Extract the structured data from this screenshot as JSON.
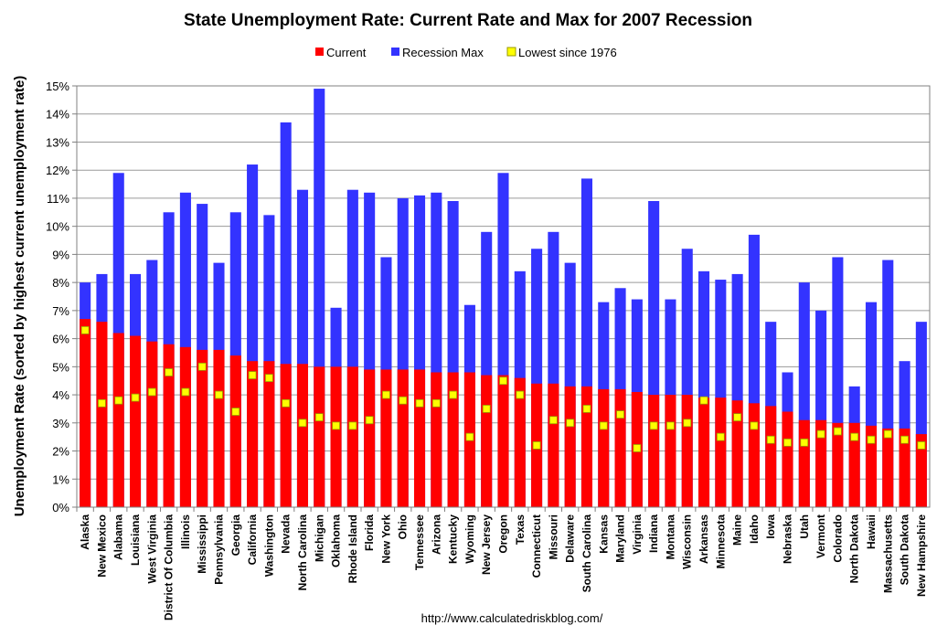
{
  "chart_data": {
    "type": "bar",
    "title": "State Unemployment Rate: Current Rate and Max for 2007 Recession",
    "ylabel": "Unemployment Rate (sorted by highest current unemployment rate)",
    "xlabel": "",
    "ylim": [
      0,
      15
    ],
    "ytick_values": [
      0,
      1,
      2,
      3,
      4,
      5,
      6,
      7,
      8,
      9,
      10,
      11,
      12,
      13,
      14,
      15
    ],
    "ytick_labels": [
      "0%",
      "1%",
      "2%",
      "3%",
      "4%",
      "5%",
      "6%",
      "7%",
      "8%",
      "9%",
      "10%",
      "11%",
      "12%",
      "13%",
      "14%",
      "15%"
    ],
    "grid": true,
    "legend_position": "top-center",
    "colors": {
      "current": "#ff0000",
      "recession_max": "#3333ff",
      "lowest": "#ffff00",
      "lowest_border": "#999900"
    },
    "categories": [
      "Alaska",
      "New Mexico",
      "Alabama",
      "Louisiana",
      "West Virginia",
      "District Of Columbia",
      "Illinois",
      "Mississippi",
      "Pennsylvania",
      "Georgia",
      "California",
      "Washington",
      "Nevada",
      "North Carolina",
      "Michigan",
      "Oklahoma",
      "Rhode Island",
      "Florida",
      "New York",
      "Ohio",
      "Tennessee",
      "Arizona",
      "Kentucky",
      "Wyoming",
      "New Jersey",
      "Oregon",
      "Texas",
      "Connecticut",
      "Missouri",
      "Delaware",
      "South Carolina",
      "Kansas",
      "Maryland",
      "Virginia",
      "Indiana",
      "Montana",
      "Wisconsin",
      "Arkansas",
      "Minnesota",
      "Maine",
      "Idaho",
      "Iowa",
      "Nebraska",
      "Utah",
      "Vermont",
      "Colorado",
      "North Dakota",
      "Hawaii",
      "Massachusetts",
      "South Dakota",
      "New Hampshire"
    ],
    "series": [
      {
        "name": "Current",
        "type": "bar",
        "values": [
          6.7,
          6.6,
          6.2,
          6.1,
          5.9,
          5.8,
          5.7,
          5.6,
          5.6,
          5.4,
          5.2,
          5.2,
          5.1,
          5.1,
          5.0,
          5.0,
          5.0,
          4.9,
          4.9,
          4.9,
          4.9,
          4.8,
          4.8,
          4.8,
          4.7,
          4.7,
          4.6,
          4.4,
          4.4,
          4.3,
          4.3,
          4.2,
          4.2,
          4.1,
          4.0,
          4.0,
          4.0,
          3.9,
          3.9,
          3.8,
          3.7,
          3.6,
          3.4,
          3.1,
          3.1,
          3.0,
          3.0,
          2.9,
          2.8,
          2.8,
          2.6
        ]
      },
      {
        "name": "Recession Max",
        "type": "bar",
        "values": [
          8.0,
          8.3,
          11.9,
          8.3,
          8.8,
          10.5,
          11.2,
          10.8,
          8.7,
          10.5,
          12.2,
          10.4,
          13.7,
          11.3,
          14.9,
          7.1,
          11.3,
          11.2,
          8.9,
          11.0,
          11.1,
          11.2,
          10.9,
          7.2,
          9.8,
          11.9,
          8.4,
          9.2,
          9.8,
          8.7,
          11.7,
          7.3,
          7.8,
          7.4,
          10.9,
          7.4,
          9.2,
          8.4,
          8.1,
          8.3,
          9.7,
          6.6,
          4.8,
          8.0,
          7.0,
          8.9,
          4.3,
          7.3,
          8.8,
          5.2,
          6.6
        ]
      },
      {
        "name": "Lowest since 1976",
        "type": "marker",
        "values": [
          6.3,
          3.7,
          3.8,
          3.9,
          4.1,
          4.8,
          4.1,
          5.0,
          4.0,
          3.4,
          4.7,
          4.6,
          3.7,
          3.0,
          3.2,
          2.9,
          2.9,
          3.1,
          4.0,
          3.8,
          3.7,
          3.7,
          4.0,
          2.5,
          3.5,
          4.5,
          4.0,
          2.2,
          3.1,
          3.0,
          3.5,
          2.9,
          3.3,
          2.1,
          2.9,
          2.9,
          3.0,
          3.8,
          2.5,
          3.2,
          2.9,
          2.4,
          2.3,
          2.3,
          2.6,
          2.7,
          2.5,
          2.4,
          2.6,
          2.4,
          2.2
        ]
      }
    ]
  },
  "footer": {
    "url": "http://www.calculatedriskblog.com/"
  }
}
